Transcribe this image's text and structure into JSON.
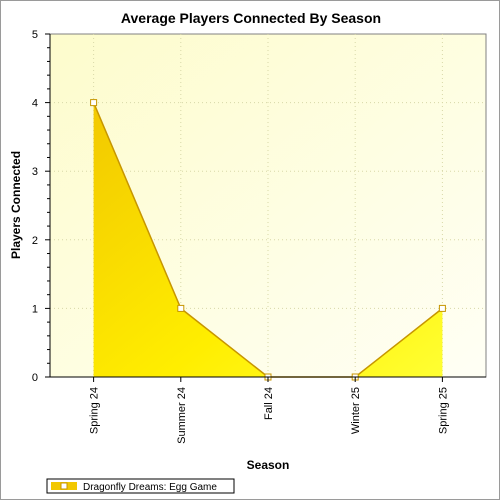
{
  "chart_data": {
    "type": "area",
    "title": "Average Players Connected By Season",
    "xlabel": "Season",
    "ylabel": "Players Connected",
    "categories": [
      "Spring 24",
      "Summer 24",
      "Fall 24",
      "Winter 25",
      "Spring 25"
    ],
    "series": [
      {
        "name": "Dragonfly Dreams: Egg Game",
        "values": [
          4,
          1,
          0,
          0,
          1
        ]
      }
    ],
    "ylim": [
      0,
      5
    ],
    "yticks": [
      "0",
      "1",
      "2",
      "3",
      "4",
      "5"
    ],
    "grid": true,
    "legend": "bottom-left",
    "colors": {
      "area_top": "#f2c800",
      "area_bottom": "#ffee00",
      "area_right": "#ffff33",
      "line": "#c79600",
      "marker_fill": "#ffffff",
      "plot_bg_light": "#fffff5",
      "plot_bg_dark": "#fdfccc",
      "grid": "#d8d8a8"
    }
  }
}
